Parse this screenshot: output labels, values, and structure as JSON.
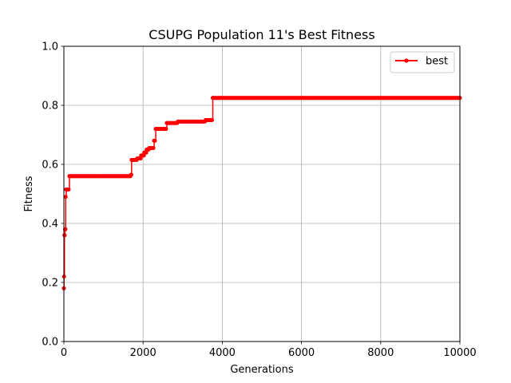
{
  "chart_data": {
    "type": "line",
    "title": "CSUPG Population 11's Best Fitness",
    "xlabel": "Generations",
    "ylabel": "Fitness",
    "xlim": [
      0,
      10000
    ],
    "ylim": [
      0.0,
      1.0
    ],
    "xticks": [
      "0",
      "2000",
      "4000",
      "6000",
      "8000",
      "10000"
    ],
    "yticks": [
      "0.0",
      "0.2",
      "0.4",
      "0.6",
      "0.8",
      "1.0"
    ],
    "grid": true,
    "legend_position": "top-right",
    "series": [
      {
        "name": "best",
        "color": "#ff0000",
        "marker": "circle",
        "steps": [
          [
            0,
            0.18
          ],
          [
            5,
            0.22
          ],
          [
            15,
            0.36
          ],
          [
            30,
            0.38
          ],
          [
            45,
            0.49
          ],
          [
            60,
            0.515
          ],
          [
            140,
            0.56
          ],
          [
            1700,
            0.565
          ],
          [
            1710,
            0.615
          ],
          [
            1850,
            0.62
          ],
          [
            1950,
            0.63
          ],
          [
            2030,
            0.64
          ],
          [
            2090,
            0.65
          ],
          [
            2150,
            0.655
          ],
          [
            2280,
            0.68
          ],
          [
            2320,
            0.72
          ],
          [
            2600,
            0.74
          ],
          [
            2880,
            0.745
          ],
          [
            3580,
            0.75
          ],
          [
            3760,
            0.825
          ],
          [
            10000,
            0.825
          ]
        ]
      }
    ]
  }
}
